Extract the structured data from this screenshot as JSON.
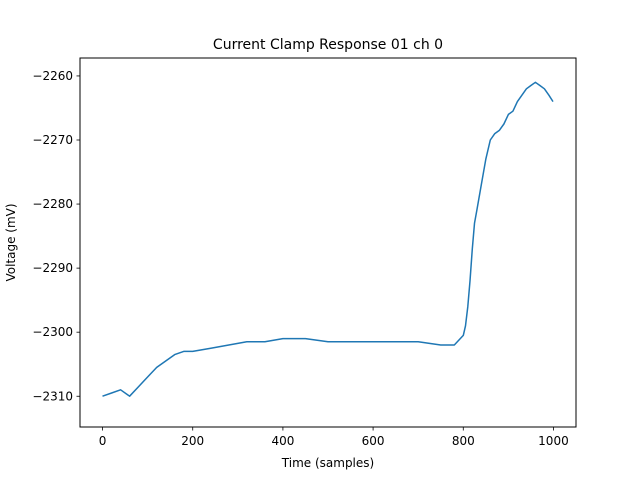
{
  "chart_data": {
    "type": "line",
    "title": "Current Clamp Response 01 ch 0",
    "xlabel": "Time (samples)",
    "ylabel": "Voltage (mV)",
    "xlim": [
      -50,
      1050
    ],
    "ylim": [
      -2314.8,
      -2257.2
    ],
    "xticks": [
      0,
      200,
      400,
      600,
      800,
      1000
    ],
    "yticks": [
      -2310,
      -2300,
      -2290,
      -2280,
      -2270,
      -2260
    ],
    "grid": false,
    "legend": "none",
    "series": [
      {
        "color": "#1f77b4",
        "x": [
          0,
          20,
          40,
          60,
          80,
          100,
          120,
          140,
          160,
          180,
          200,
          240,
          280,
          320,
          360,
          400,
          450,
          500,
          550,
          600,
          650,
          700,
          750,
          780,
          800,
          805,
          810,
          815,
          820,
          825,
          830,
          840,
          850,
          860,
          870,
          880,
          890,
          900,
          910,
          920,
          930,
          940,
          950,
          960,
          970,
          980,
          990,
          999
        ],
        "y": [
          -2310,
          -2309.5,
          -2309,
          -2310,
          -2308.5,
          -2307,
          -2305.5,
          -2304.5,
          -2303.5,
          -2303,
          -2303,
          -2302.5,
          -2302,
          -2301.5,
          -2301.5,
          -2301,
          -2301,
          -2301.5,
          -2301.5,
          -2301.5,
          -2301.5,
          -2301.5,
          -2302,
          -2302,
          -2300.5,
          -2299,
          -2296,
          -2292,
          -2287,
          -2283,
          -2281,
          -2277,
          -2273,
          -2270,
          -2269,
          -2268.5,
          -2267.5,
          -2266,
          -2265.5,
          -2264,
          -2263,
          -2262,
          -2261.5,
          -2261,
          -2261.5,
          -2262,
          -2263,
          -2264
        ]
      }
    ]
  }
}
